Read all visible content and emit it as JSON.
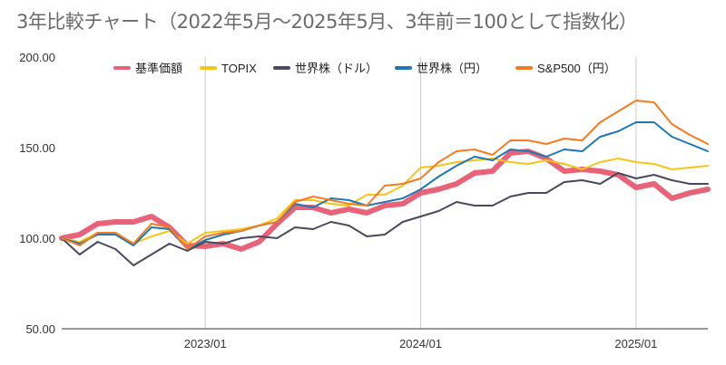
{
  "chart_data": {
    "type": "line",
    "title": "3年比較チャート（2022年5月〜2025年5月、3年前＝100として指数化）",
    "xlabel": "",
    "ylabel": "",
    "ylim": [
      50,
      200
    ],
    "yticks": [
      "50.00",
      "100.00",
      "150.00",
      "200.00"
    ],
    "xticks": [
      "2023/01",
      "2024/01",
      "2025/01"
    ],
    "x": [
      "2022/05",
      "2022/06",
      "2022/07",
      "2022/08",
      "2022/09",
      "2022/10",
      "2022/11",
      "2022/12",
      "2023/01",
      "2023/02",
      "2023/03",
      "2023/04",
      "2023/05",
      "2023/06",
      "2023/07",
      "2023/08",
      "2023/09",
      "2023/10",
      "2023/11",
      "2023/12",
      "2024/01",
      "2024/02",
      "2024/03",
      "2024/04",
      "2024/05",
      "2024/06",
      "2024/07",
      "2024/08",
      "2024/09",
      "2024/10",
      "2024/11",
      "2024/12",
      "2025/01",
      "2025/02",
      "2025/03",
      "2025/04",
      "2025/05"
    ],
    "grid": "vertical",
    "legend": "top",
    "series": [
      {
        "name": "基準価額",
        "color": "#e8637a",
        "values": [
          100,
          102,
          108,
          109,
          109,
          112,
          106,
          96,
          95.5,
          97,
          94,
          98,
          108,
          117,
          117,
          114,
          116,
          114,
          118,
          119,
          125,
          127,
          130,
          136,
          137,
          147,
          148,
          144,
          137,
          138,
          137,
          135,
          128,
          130,
          122,
          125,
          127
        ]
      },
      {
        "name": "TOPIX",
        "color": "#f5c518",
        "values": [
          100,
          98,
          103,
          103,
          97,
          101,
          104,
          97,
          103,
          104,
          105,
          107,
          111,
          121,
          121,
          119,
          118,
          124,
          124,
          129,
          139,
          140,
          142,
          143,
          144,
          142,
          141,
          143,
          141,
          138,
          142,
          144,
          142,
          141,
          138,
          139,
          140
        ]
      },
      {
        "name": "世界株（ドル）",
        "color": "#4a4a5e",
        "values": [
          100,
          91,
          98,
          94,
          85,
          91,
          97,
          93,
          98,
          97,
          100,
          101,
          100,
          106,
          105,
          109,
          107,
          101,
          102,
          109,
          112,
          115,
          120,
          118,
          118,
          123,
          125,
          125,
          131,
          132,
          130,
          136,
          133,
          135,
          132,
          130,
          130
        ]
      },
      {
        "name": "世界株（円）",
        "color": "#1f77b4",
        "values": [
          100,
          97,
          102,
          102,
          96,
          106,
          105,
          94,
          99,
          102,
          104,
          107,
          109,
          119,
          117,
          122,
          121,
          118,
          120,
          122,
          127,
          134,
          140,
          145,
          143,
          149,
          148,
          145,
          149,
          148,
          156,
          159,
          164,
          164,
          156,
          152,
          148
        ]
      },
      {
        "name": "S&P500（円）",
        "color": "#f47b20",
        "values": [
          100,
          96,
          103,
          103,
          97,
          108,
          106,
          94,
          101,
          103,
          104,
          107,
          109,
          120,
          123,
          121,
          119,
          118,
          129,
          130,
          133,
          142,
          148,
          149,
          146,
          154,
          154,
          152,
          155,
          154,
          164,
          170,
          176,
          175,
          163,
          157,
          152
        ]
      }
    ]
  }
}
